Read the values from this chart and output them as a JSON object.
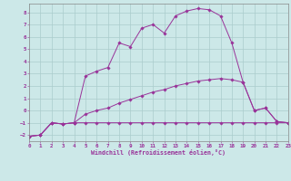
{
  "xlabel": "Windchill (Refroidissement éolien,°C)",
  "background_color": "#cce8e8",
  "grid_color": "#aacccc",
  "line_color": "#993399",
  "xlim": [
    0,
    23
  ],
  "ylim": [
    -2.5,
    8.7
  ],
  "xticks": [
    0,
    1,
    2,
    3,
    4,
    5,
    6,
    7,
    8,
    9,
    10,
    11,
    12,
    13,
    14,
    15,
    16,
    17,
    18,
    19,
    20,
    21,
    22,
    23
  ],
  "yticks": [
    -2,
    -1,
    0,
    1,
    2,
    3,
    4,
    5,
    6,
    7,
    8
  ],
  "line1_x": [
    0,
    1,
    2,
    3,
    4,
    5,
    6,
    7,
    8,
    9,
    10,
    11,
    12,
    13,
    14,
    15,
    16,
    17,
    18,
    19,
    20,
    21,
    22,
    23
  ],
  "line1_y": [
    -2.1,
    -2.0,
    -1.0,
    -1.1,
    -1.0,
    2.8,
    3.2,
    3.5,
    5.5,
    5.2,
    6.7,
    7.0,
    6.3,
    7.7,
    8.1,
    8.3,
    8.2,
    7.7,
    5.5,
    2.3,
    0.0,
    0.2,
    -0.9,
    -1.0
  ],
  "line2_x": [
    0,
    1,
    2,
    3,
    4,
    5,
    6,
    7,
    8,
    9,
    10,
    11,
    12,
    13,
    14,
    15,
    16,
    17,
    18,
    19,
    20,
    21,
    22,
    23
  ],
  "line2_y": [
    -2.1,
    -2.0,
    -1.0,
    -1.1,
    -1.0,
    -0.3,
    0.0,
    0.2,
    0.6,
    0.9,
    1.2,
    1.5,
    1.7,
    2.0,
    2.2,
    2.4,
    2.5,
    2.6,
    2.5,
    2.3,
    0.0,
    0.2,
    -0.9,
    -1.0
  ],
  "line3_x": [
    0,
    1,
    2,
    3,
    4,
    5,
    6,
    7,
    8,
    9,
    10,
    11,
    12,
    13,
    14,
    15,
    16,
    17,
    18,
    19,
    20,
    21,
    22,
    23
  ],
  "line3_y": [
    -2.1,
    -2.0,
    -1.0,
    -1.1,
    -1.0,
    -1.0,
    -1.0,
    -1.0,
    -1.0,
    -1.0,
    -1.0,
    -1.0,
    -1.0,
    -1.0,
    -1.0,
    -1.0,
    -1.0,
    -1.0,
    -1.0,
    -1.0,
    -1.0,
    -1.0,
    -1.0,
    -1.0
  ]
}
